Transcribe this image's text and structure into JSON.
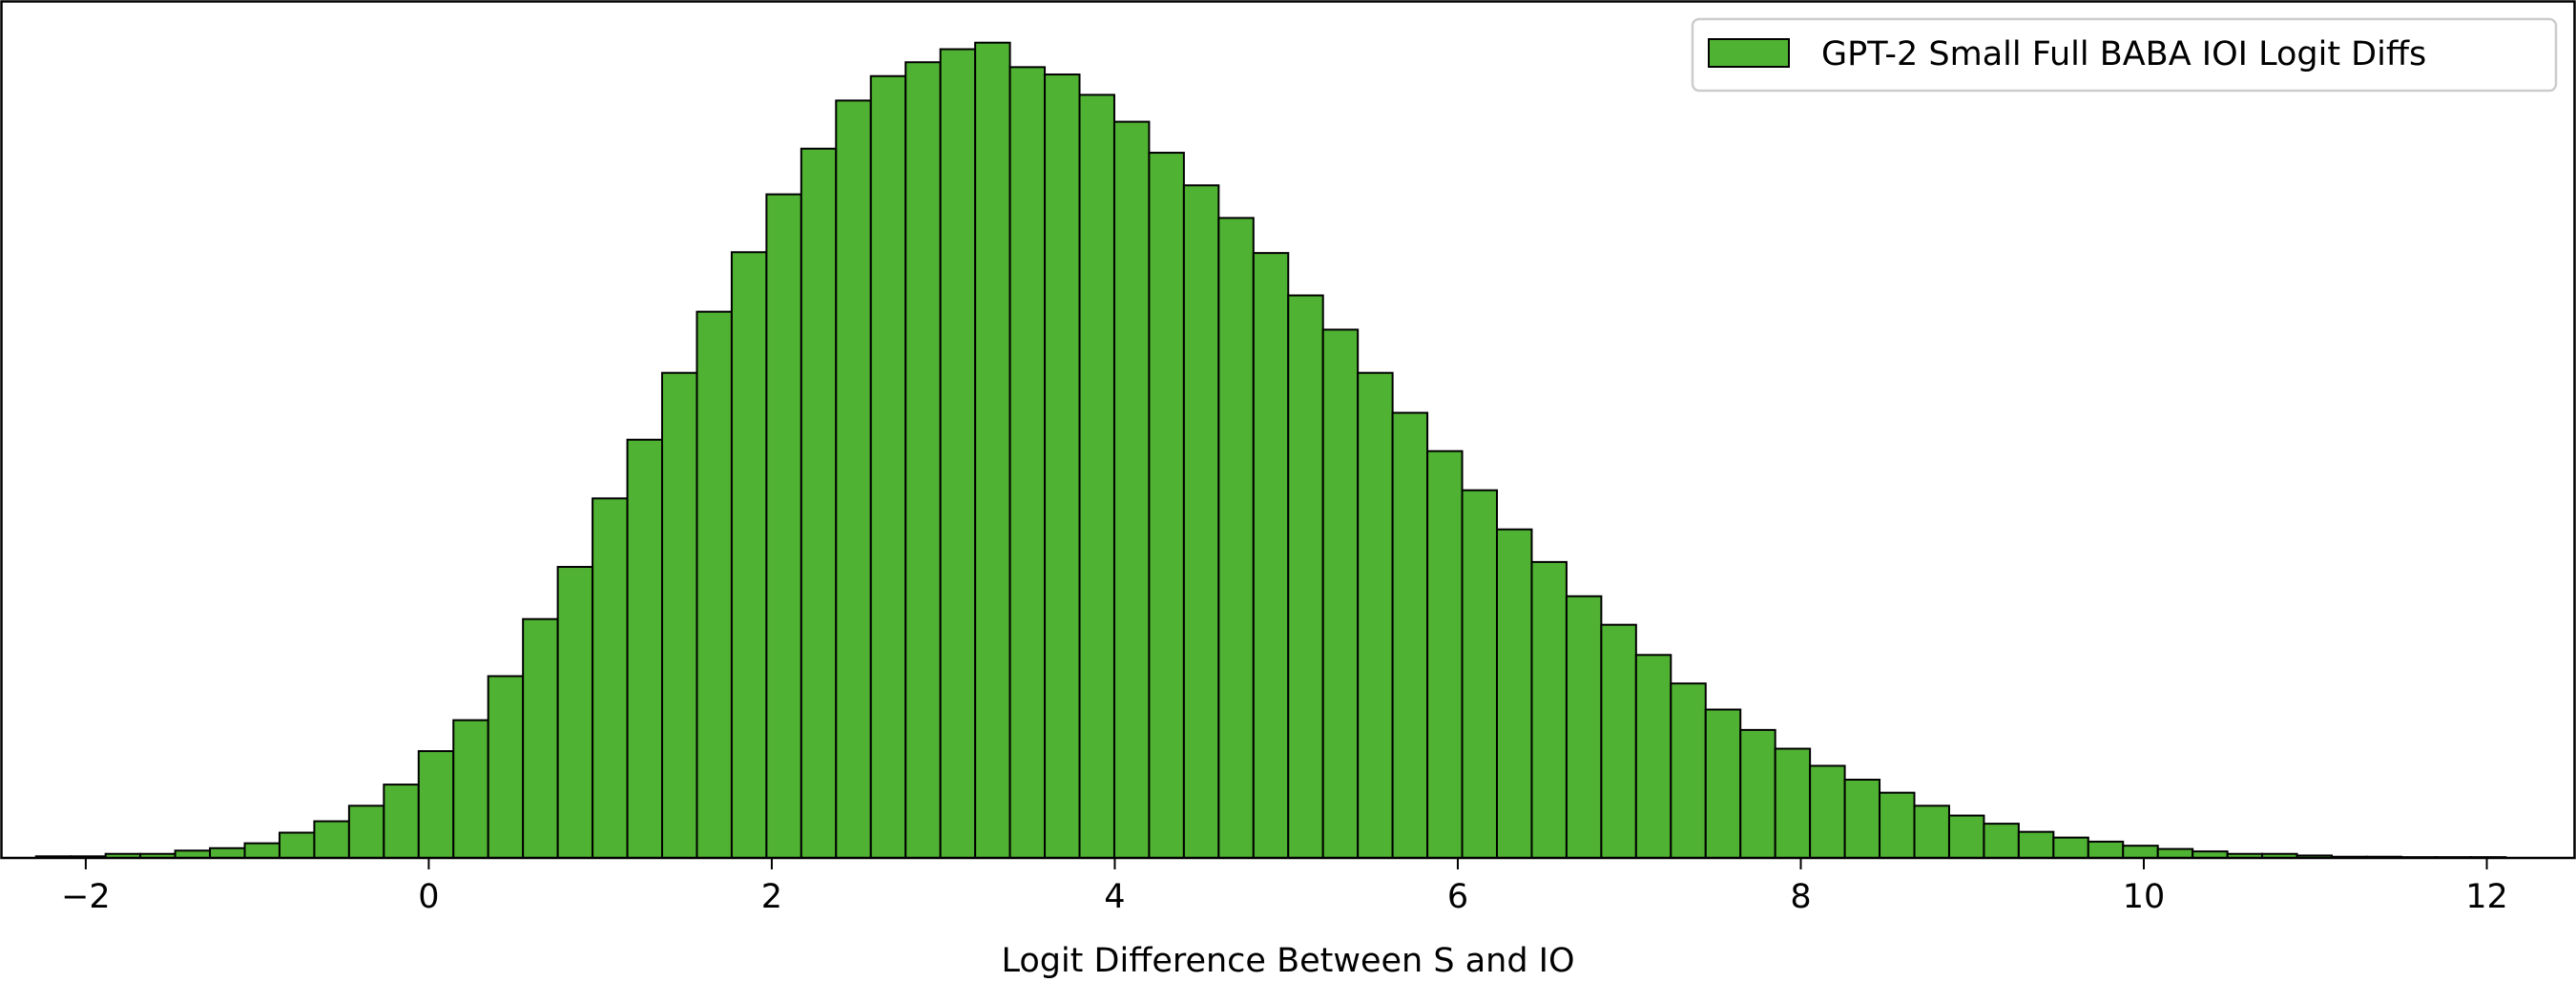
{
  "chart_data": {
    "type": "bar",
    "subtype": "histogram",
    "title": "",
    "xlabel": "Logit Difference Between S and IO",
    "ylabel": "",
    "xlim": [
      -2.5,
      12.52
    ],
    "ylim": [
      0,
      105
    ],
    "y_axis_visible": false,
    "y_units": "relative frequency, tallest bin = 100 (no y-axis printed)",
    "grid": false,
    "legend_position": "top-right",
    "x_ticks": [
      -2,
      0,
      2,
      4,
      6,
      8,
      10,
      12
    ],
    "x_tick_labels": [
      "−2",
      "0",
      "2",
      "4",
      "6",
      "8",
      "10",
      "12"
    ],
    "bin_start": -2.29,
    "bin_end": 12.11,
    "bin_count": 71,
    "series": [
      {
        "name": "GPT-2 Small Full BABA IOI Logit Diffs",
        "color": "#50b232",
        "edgecolor": "#000000",
        "values": [
          0.2,
          0.2,
          0.5,
          0.5,
          0.9,
          1.2,
          1.8,
          3.1,
          4.5,
          6.4,
          9.0,
          13.1,
          16.9,
          22.3,
          29.3,
          35.7,
          44.1,
          51.3,
          59.5,
          67.0,
          74.3,
          81.4,
          87.0,
          92.9,
          95.9,
          97.6,
          99.2,
          100,
          97.0,
          96.1,
          93.6,
          90.3,
          86.5,
          82.5,
          78.5,
          74.2,
          69.0,
          64.8,
          59.5,
          54.6,
          49.9,
          45.1,
          40.3,
          36.3,
          32.1,
          28.6,
          24.9,
          21.4,
          18.2,
          15.7,
          13.4,
          11.3,
          9.6,
          8.0,
          6.4,
          5.2,
          4.2,
          3.2,
          2.5,
          2.0,
          1.5,
          1.1,
          0.8,
          0.5,
          0.5,
          0.3,
          0.15,
          0.15,
          0.1,
          0.1,
          0.1
        ]
      }
    ]
  }
}
